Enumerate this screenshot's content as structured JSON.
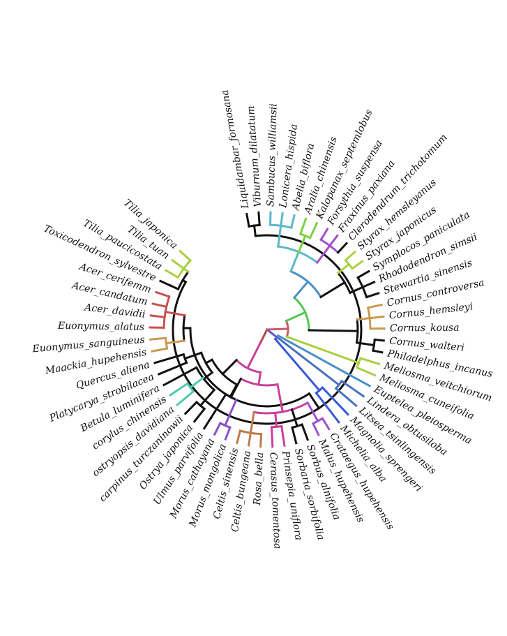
{
  "figure": {
    "type": "circular-phylogenetic-tree",
    "colors": {
      "black": "#111111",
      "green": "#7dcf3f",
      "red": "#c85050",
      "tan": "#c89a50",
      "teal": "#4fc9b0",
      "purple": "#8a4fc8",
      "magenta": "#c8409a",
      "sienna": "#c07a4a",
      "cyan": "#5bb8c8",
      "lightgreen": "#a8d040",
      "violet": "#a050c8",
      "blue": "#3858d8",
      "steelblue": "#4a90c8",
      "darkred": "#b04848",
      "limegreen": "#50c850",
      "mauve": "#b05880",
      "slate": "#4a70c0",
      "indigo": "#6050c8",
      "rose": "#c85a6a"
    },
    "taxa": [
      {
        "name": "Liquidambar_formosana",
        "color": "black"
      },
      {
        "name": "Viburnum_dilatatum",
        "color": "black"
      },
      {
        "name": "Sambucus_williamsii",
        "color": "cyan"
      },
      {
        "name": "Lonicera_hispida",
        "color": "cyan"
      },
      {
        "name": "Abelia_biflora",
        "color": "cyan"
      },
      {
        "name": "Aralia_chinensis",
        "color": "green"
      },
      {
        "name": "Kalopanax_septemlobus",
        "color": "green"
      },
      {
        "name": "Forsythia_suspensa",
        "color": "violet"
      },
      {
        "name": "Fraxinus_paxiana",
        "color": "violet"
      },
      {
        "name": "Clerodendrum_trichotomum",
        "color": "black"
      },
      {
        "name": "Styrax_hemsleyanus",
        "color": "lightgreen"
      },
      {
        "name": "Styrax_japonicus",
        "color": "lightgreen"
      },
      {
        "name": "Symplocos_paniculata",
        "color": "black"
      },
      {
        "name": "Rhododendron_simsii",
        "color": "black"
      },
      {
        "name": "Stewartia_sinensis",
        "color": "black"
      },
      {
        "name": "Cornus_controversa",
        "color": "tan"
      },
      {
        "name": "Cornus_hemsleyi",
        "color": "tan"
      },
      {
        "name": "Cornus_kousa",
        "color": "tan"
      },
      {
        "name": "Cornus_walteri",
        "color": "black"
      },
      {
        "name": "Philadelphus_incanus",
        "color": "black"
      },
      {
        "name": "Meliosma_veitchiorum",
        "color": "lightgreen"
      },
      {
        "name": "Meliosma_cuneifolia",
        "color": "lightgreen"
      },
      {
        "name": "Euptelea_pleiosperma",
        "color": "steelblue"
      },
      {
        "name": "Lindera_obtusiloba",
        "color": "slate"
      },
      {
        "name": "Litsea_tsinlingensis",
        "color": "slate"
      },
      {
        "name": "Magnolia_sprengeri",
        "color": "blue"
      },
      {
        "name": "Michelia_alba",
        "color": "blue"
      },
      {
        "name": "Crataegus_hupehensis",
        "color": "violet"
      },
      {
        "name": "Malus_hupehensis",
        "color": "violet"
      },
      {
        "name": "Sorbus_alnifolia",
        "color": "black"
      },
      {
        "name": "Sorbaria_sorbifolia",
        "color": "black"
      },
      {
        "name": "Prinsepia_uniflora",
        "color": "magenta"
      },
      {
        "name": "Cerasus_tomentosa",
        "color": "magenta"
      },
      {
        "name": "Rosa_bella",
        "color": "sienna"
      },
      {
        "name": "Celtis_bungeana",
        "color": "sienna"
      },
      {
        "name": "Celtis_sinensis",
        "color": "sienna"
      },
      {
        "name": "Morus_mongolica",
        "color": "purple"
      },
      {
        "name": "Morus_cathayana",
        "color": "purple"
      },
      {
        "name": "Ulmus_parvifolia",
        "color": "black"
      },
      {
        "name": "Ostrya_japonica",
        "color": "black"
      },
      {
        "name": "carpinus_turczaninowii",
        "color": "black"
      },
      {
        "name": "ostryopsis_davidiana",
        "color": "teal"
      },
      {
        "name": "corylus_chinensis",
        "color": "teal"
      },
      {
        "name": "Betula_luminifera",
        "color": "black"
      },
      {
        "name": "Platycarya_strobilacea",
        "color": "black"
      },
      {
        "name": "Quercus_aliena",
        "color": "black"
      },
      {
        "name": "Maackia_hupehensis",
        "color": "tan"
      },
      {
        "name": "Euonymus_sanguineus",
        "color": "tan"
      },
      {
        "name": "Euonymus_alatus",
        "color": "red"
      },
      {
        "name": "Acer_davidii",
        "color": "red"
      },
      {
        "name": "Acer_candatum",
        "color": "red"
      },
      {
        "name": "Acer_cerifemm",
        "color": "red"
      },
      {
        "name": "Toxicodendron_sylvestre",
        "color": "black"
      },
      {
        "name": "Tilia_paucicostata",
        "color": "lightgreen"
      },
      {
        "name": "Tilia_tuan",
        "color": "lightgreen"
      },
      {
        "name": "Tilia_japonica",
        "color": "lightgreen"
      }
    ]
  }
}
